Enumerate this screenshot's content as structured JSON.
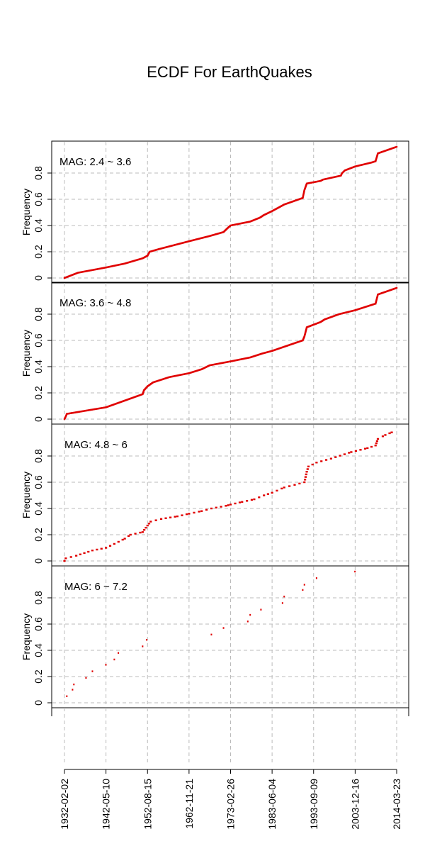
{
  "chart_data": {
    "type": "scatter",
    "title": "ECDF For EarthQuakes",
    "ylabel": "Frequency",
    "xlabel": "",
    "color": "#e00000",
    "grid": true,
    "grid_color": "#bbbbbb",
    "x_ticks": [
      "1932-02-02",
      "1942-05-10",
      "1952-08-15",
      "1962-11-21",
      "1973-02-26",
      "1983-06-04",
      "1993-09-09",
      "2003-12-16",
      "2014-03-23"
    ],
    "y_ticks": [
      "0",
      "0.2",
      "0.4",
      "0.6",
      "0.8"
    ],
    "xlim": [
      "1932-02-02",
      "2014-03-23"
    ],
    "ylim": [
      0,
      1
    ],
    "panels": [
      {
        "label": "MAG: 2.4 ~ 3.6",
        "style": "dense",
        "x": [
          "1932-02-02",
          "1935-06-01",
          "1942-05-10",
          "1947-01-01",
          "1951-06-01",
          "1952-08-15",
          "1953-03-01",
          "1955-06-01",
          "1962-11-21",
          "1968-01-01",
          "1971-06-01",
          "1972-06-01",
          "1973-02-26",
          "1978-01-01",
          "1980-06-01",
          "1981-06-01",
          "1983-06-04",
          "1986-06-01",
          "1991-01-01",
          "1991-06-01",
          "1992-01-01",
          "1995-06-01",
          "1996-01-01",
          "2000-06-01",
          "2000-10-01",
          "2001-06-01",
          "2003-12-16",
          "2008-01-01",
          "2009-01-01",
          "2009-08-01",
          "2014-03-23"
        ],
        "y": [
          0.0,
          0.04,
          0.08,
          0.11,
          0.15,
          0.17,
          0.2,
          0.22,
          0.28,
          0.32,
          0.35,
          0.38,
          0.4,
          0.43,
          0.46,
          0.48,
          0.51,
          0.56,
          0.61,
          0.67,
          0.72,
          0.74,
          0.75,
          0.78,
          0.8,
          0.82,
          0.85,
          0.88,
          0.89,
          0.95,
          1.0
        ]
      },
      {
        "label": "MAG: 3.6 ~ 4.8",
        "style": "dense",
        "x": [
          "1932-02-02",
          "1932-06-01",
          "1932-09-01",
          "1942-05-10",
          "1951-06-01",
          "1951-10-01",
          "1952-08-15",
          "1954-01-01",
          "1958-01-01",
          "1962-11-21",
          "1966-01-01",
          "1968-01-01",
          "1973-02-26",
          "1978-01-01",
          "1981-01-01",
          "1983-06-04",
          "1991-01-01",
          "1991-06-01",
          "1992-01-01",
          "1995-06-01",
          "1996-06-01",
          "2000-01-01",
          "2003-12-16",
          "2008-01-01",
          "2009-01-01",
          "2009-08-01",
          "2014-03-23"
        ],
        "y": [
          0.0,
          0.02,
          0.04,
          0.09,
          0.19,
          0.22,
          0.25,
          0.28,
          0.32,
          0.35,
          0.38,
          0.41,
          0.44,
          0.47,
          0.5,
          0.52,
          0.6,
          0.63,
          0.7,
          0.74,
          0.76,
          0.8,
          0.83,
          0.87,
          0.88,
          0.95,
          1.0
        ]
      },
      {
        "label": "MAG: 4.8 ~ 6",
        "style": "sparse",
        "x": [
          "1932-02-02",
          "1932-06-01",
          "1935-01-01",
          "1937-01-01",
          "1939-01-01",
          "1942-05-10",
          "1944-06-01",
          "1947-01-01",
          "1948-06-01",
          "1951-06-01",
          "1952-08-15",
          "1953-06-01",
          "1956-01-01",
          "1960-01-01",
          "1962-11-21",
          "1966-01-01",
          "1968-06-01",
          "1972-01-01",
          "1973-02-26",
          "1976-01-01",
          "1979-01-01",
          "1981-06-01",
          "1983-06-04",
          "1986-06-01",
          "1989-01-01",
          "1991-06-01",
          "1992-01-01",
          "1992-06-01",
          "1994-06-01",
          "1998-01-01",
          "2003-01-01",
          "2007-01-01",
          "2009-01-01",
          "2009-08-01",
          "2011-06-01",
          "2013-01-01"
        ],
        "y": [
          0.0,
          0.02,
          0.04,
          0.06,
          0.08,
          0.1,
          0.13,
          0.17,
          0.2,
          0.22,
          0.27,
          0.3,
          0.32,
          0.34,
          0.36,
          0.38,
          0.4,
          0.42,
          0.43,
          0.45,
          0.47,
          0.5,
          0.52,
          0.56,
          0.58,
          0.6,
          0.68,
          0.72,
          0.75,
          0.78,
          0.83,
          0.86,
          0.88,
          0.93,
          0.96,
          0.98
        ]
      },
      {
        "label": "MAG: 6 ~ 7.2",
        "style": "points",
        "x": [
          "1932-09-01",
          "1934-02-01",
          "1934-06-01",
          "1937-06-01",
          "1939-01-01",
          "1942-05-01",
          "1944-06-01",
          "1945-06-01",
          "1951-06-01",
          "1952-06-01",
          "1968-06-01",
          "1971-06-01",
          "1977-06-01",
          "1978-01-01",
          "1980-09-01",
          "1986-01-01",
          "1986-06-01",
          "1991-01-01",
          "1991-06-01",
          "1994-06-01",
          "2003-12-01"
        ],
        "y": [
          0.05,
          0.1,
          0.14,
          0.19,
          0.24,
          0.29,
          0.33,
          0.38,
          0.43,
          0.48,
          0.52,
          0.57,
          0.62,
          0.67,
          0.71,
          0.76,
          0.81,
          0.86,
          0.9,
          0.95,
          1.0
        ]
      }
    ]
  }
}
